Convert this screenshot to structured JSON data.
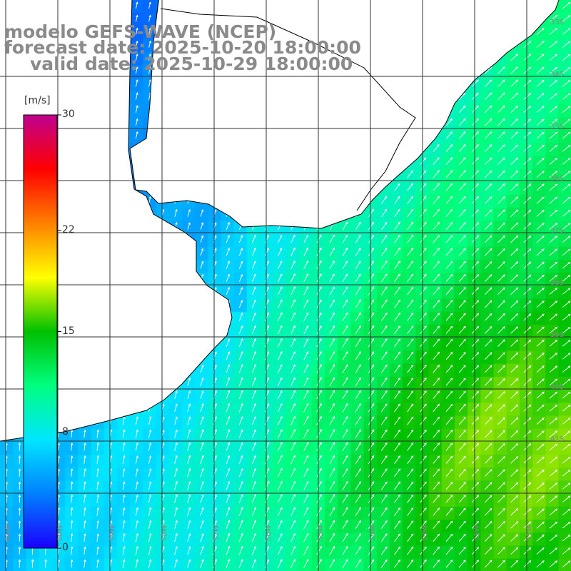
{
  "header": {
    "line1": "modelo GEFS-WAVE (NCEP)",
    "line2": "forecast date: 2025-10-20 18:00:00",
    "line3": "valid date: 2025-10-29 18:00:00"
  },
  "colorbar": {
    "units": "[m/s]",
    "min": 0,
    "max": 30,
    "ticks": [
      {
        "label": "30",
        "value": 30
      },
      {
        "label": "22",
        "value": 22
      },
      {
        "label": "15",
        "value": 15
      },
      {
        "label": "8",
        "value": 8
      },
      {
        "label": "0",
        "value": 0
      }
    ],
    "colors": [
      "#1a00ff",
      "#0080ff",
      "#00e6ff",
      "#00ff80",
      "#00c000",
      "#ffff00",
      "#ff8000",
      "#ff0000",
      "#c00090"
    ]
  },
  "map": {
    "variable": "wind speed",
    "land_color": "#ffffff",
    "coast_color": "#000000",
    "grid_color": "#333333",
    "lat_labels": [
      "33S",
      "34S",
      "35S",
      "36S",
      "37S",
      "38S",
      "39S",
      "40S",
      "41S"
    ],
    "lon_labels": [
      "61W",
      "60W",
      "59W",
      "58W",
      "57W",
      "56W",
      "55W",
      "54W",
      "53W",
      "52W",
      "51W"
    ]
  }
}
